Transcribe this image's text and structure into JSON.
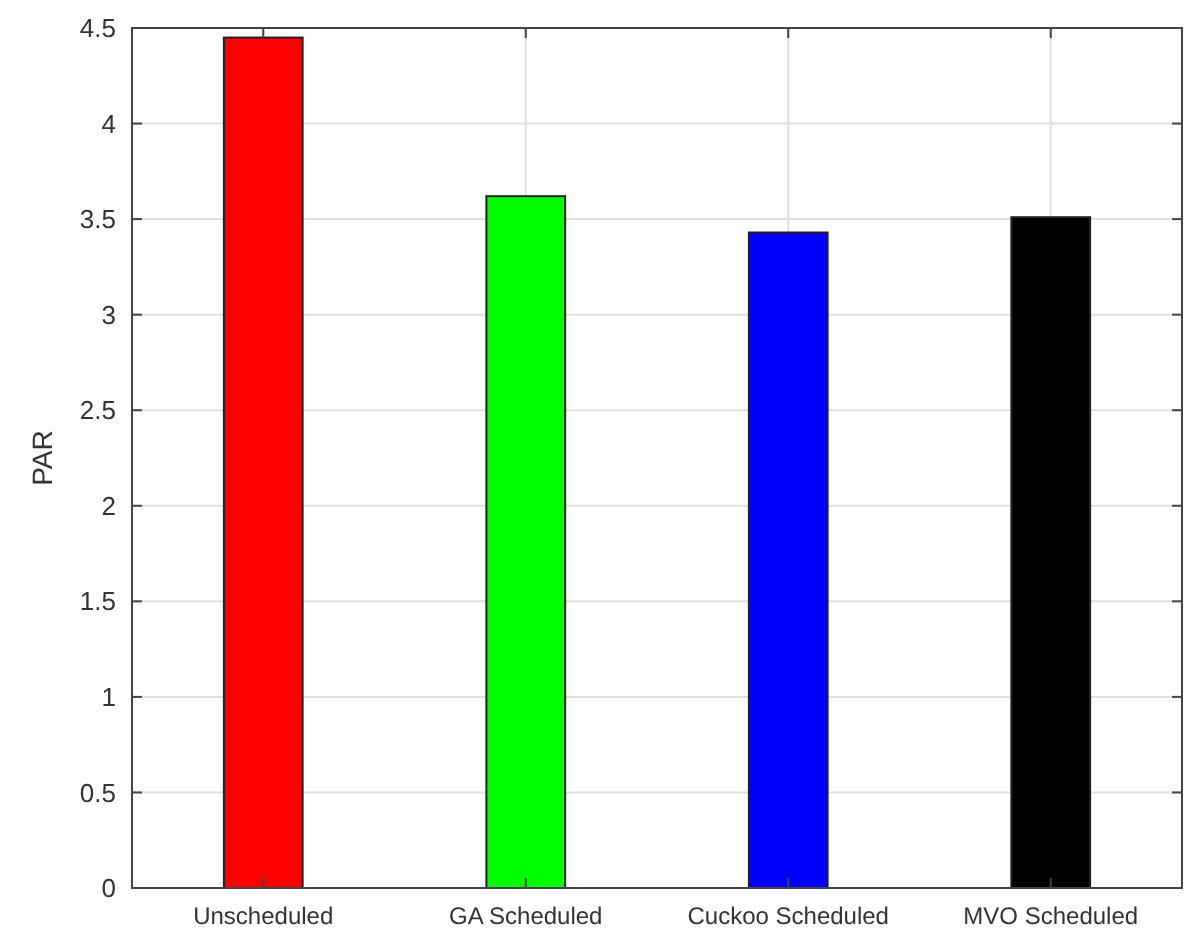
{
  "chart_data": {
    "type": "bar",
    "ylabel": "PAR",
    "categories": [
      "Unscheduled",
      "GA Scheduled",
      "Cuckoo Scheduled",
      "MVO Scheduled"
    ],
    "values": [
      4.45,
      3.62,
      3.43,
      3.51
    ],
    "colors": [
      "#ff0000",
      "#00ff00",
      "#0000ff",
      "#000000"
    ],
    "ylim": [
      0,
      4.5
    ],
    "yticks": [
      0,
      0.5,
      1,
      1.5,
      2,
      2.5,
      3,
      3.5,
      4,
      4.5
    ],
    "grid": true
  }
}
